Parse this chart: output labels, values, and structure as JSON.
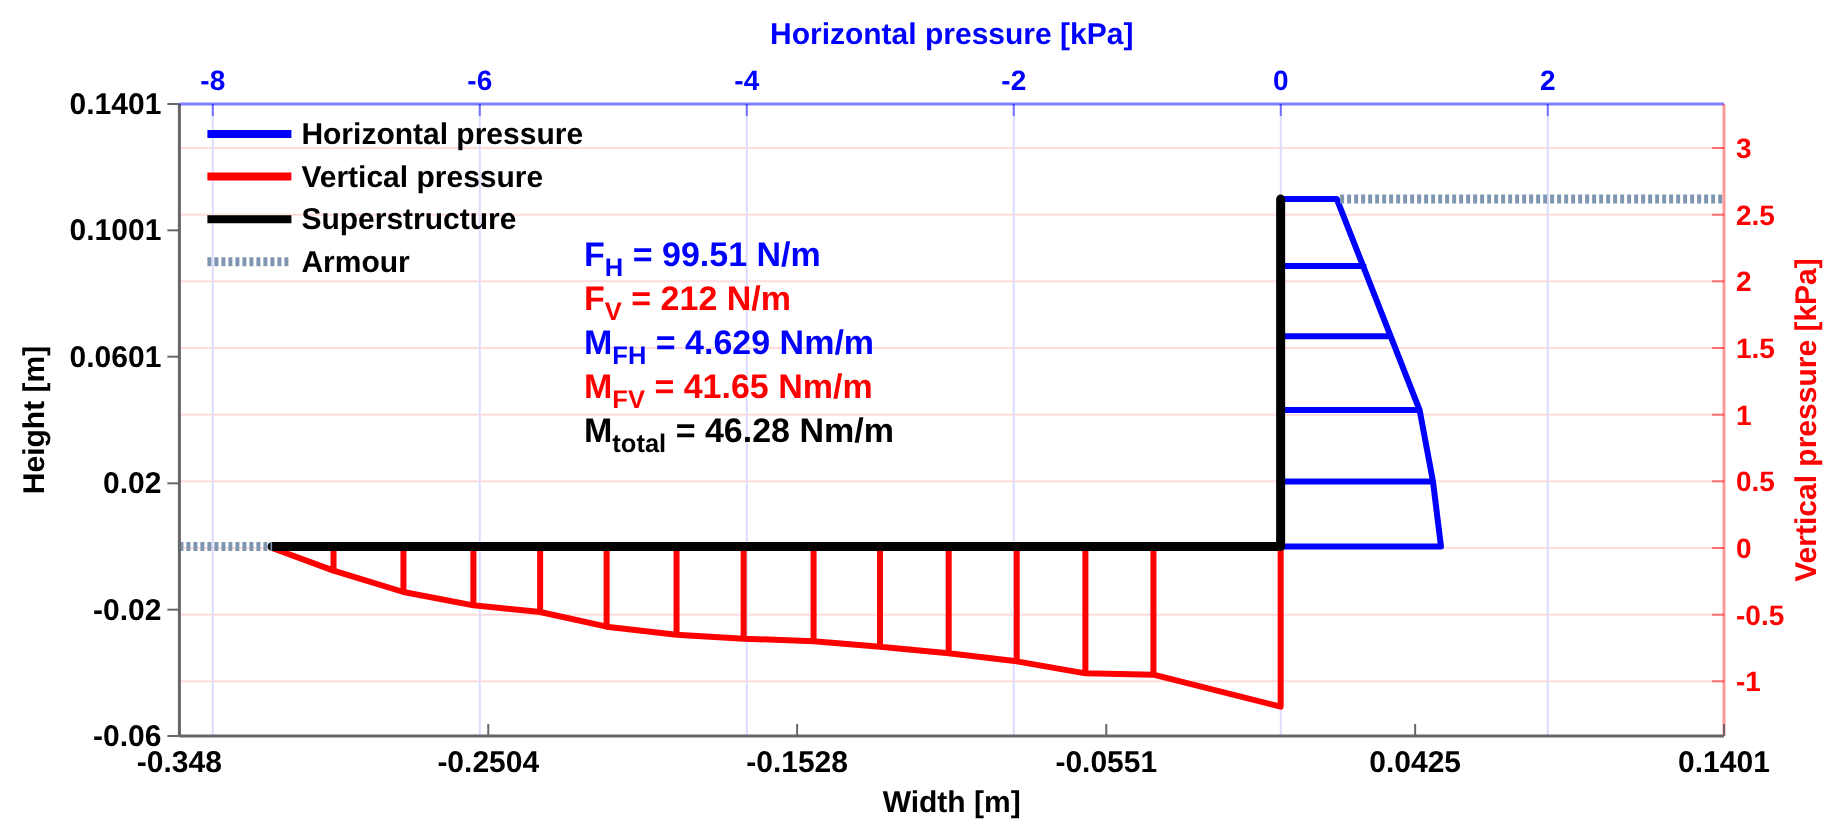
{
  "chart_data": {
    "type": "line",
    "xlabel": "Width [m]",
    "ylabel": "Height [m]",
    "x2label": "Horizontal pressure [kPa]",
    "y2label": "Vertical pressure [kPa]",
    "xlim": [
      -0.348,
      0.1401
    ],
    "xticks": [
      -0.348,
      -0.2504,
      -0.1528,
      -0.0551,
      0.0425,
      0.1401
    ],
    "ylim": [
      -0.06,
      0.1401
    ],
    "yticks": [
      -0.06,
      -0.02,
      0.02,
      0.0601,
      0.1001,
      0.1401
    ],
    "x2lim": [
      -8.25,
      3.32
    ],
    "x2ticks": [
      -8,
      -6,
      -4,
      -2,
      0,
      2
    ],
    "y2lim": [
      -1.41,
      3.33
    ],
    "y2ticks": [
      -1,
      -0.5,
      0,
      0.5,
      1,
      1.5,
      2,
      2.5,
      3
    ],
    "grid": true,
    "legend": "top left",
    "series": [
      {
        "name": "Horizontal pressure",
        "color": "#0000ff",
        "axis": "x2",
        "line_style": "solid",
        "x": [
          0,
          0.42,
          1.04,
          1.14,
          1.2,
          0,
          null,
          0,
          0.62,
          null,
          0,
          0.82,
          null,
          0,
          1.04,
          null,
          0,
          1.14
        ],
        "values": [
          0.11,
          0.11,
          0.0432,
          0.0206,
          0,
          0,
          null,
          0.0888,
          0.0888,
          null,
          0.0666,
          0.0666,
          null,
          0.0432,
          0.0432,
          null,
          0.0206,
          0.0206
        ]
      },
      {
        "name": "Vertical pressure",
        "color": "#ff0000",
        "axis": "y2",
        "line_style": "solid",
        "x": [
          -0.3187,
          -0.2993,
          -0.2772,
          -0.2551,
          -0.234,
          -0.213,
          -0.1909,
          -0.1697,
          -0.1476,
          -0.1266,
          -0.1049,
          -0.0834,
          -0.0617,
          -0.0402,
          0,
          0,
          null,
          -0.2993,
          -0.2993,
          null,
          -0.2772,
          -0.2772,
          null,
          -0.2551,
          -0.2551,
          null,
          -0.234,
          -0.234,
          null,
          -0.213,
          -0.213,
          null,
          -0.1909,
          -0.1909,
          null,
          -0.1697,
          -0.1697,
          null,
          -0.1476,
          -0.1476,
          null,
          -0.1266,
          -0.1266,
          null,
          -0.1049,
          -0.1049,
          null,
          -0.0834,
          -0.0834,
          null,
          -0.0617,
          -0.0617,
          null,
          -0.0402,
          -0.0402
        ],
        "values": [
          0,
          -0.17,
          -0.33,
          -0.43,
          -0.48,
          -0.59,
          -0.65,
          -0.68,
          -0.7,
          -0.74,
          -0.79,
          -0.85,
          -0.94,
          -0.95,
          -1.19,
          0,
          null,
          0,
          -0.17,
          null,
          0,
          -0.33,
          null,
          0,
          -0.43,
          null,
          0,
          -0.48,
          null,
          0,
          -0.59,
          null,
          0,
          -0.65,
          null,
          0,
          -0.68,
          null,
          0,
          -0.7,
          null,
          0,
          -0.74,
          null,
          0,
          -0.79,
          null,
          0,
          -0.85,
          null,
          0,
          -0.94,
          null,
          0,
          -0.95
        ]
      },
      {
        "name": "Superstructure",
        "color": "#000000",
        "line_style": "solid",
        "x": [
          -0.3187,
          0,
          0
        ],
        "values": [
          0,
          0,
          0.11
        ]
      },
      {
        "name": "Armour",
        "color": "#7f96b0",
        "line_style": "dotted",
        "x": [
          -0.348,
          -0.3187,
          null,
          0.0188,
          0.1401
        ],
        "values": [
          0,
          0,
          null,
          0.11,
          0.11
        ]
      }
    ],
    "annotations": [
      "F$_{H}$ = 99.51 N/m",
      "F$_{V}$ = 212 N/m",
      "M$_{FH}$ = 4.629 Nm/m",
      "M$_{FV}$ = 41.65 Nm/m",
      "M$_{total}$ = 46.28 Nm/m"
    ]
  }
}
